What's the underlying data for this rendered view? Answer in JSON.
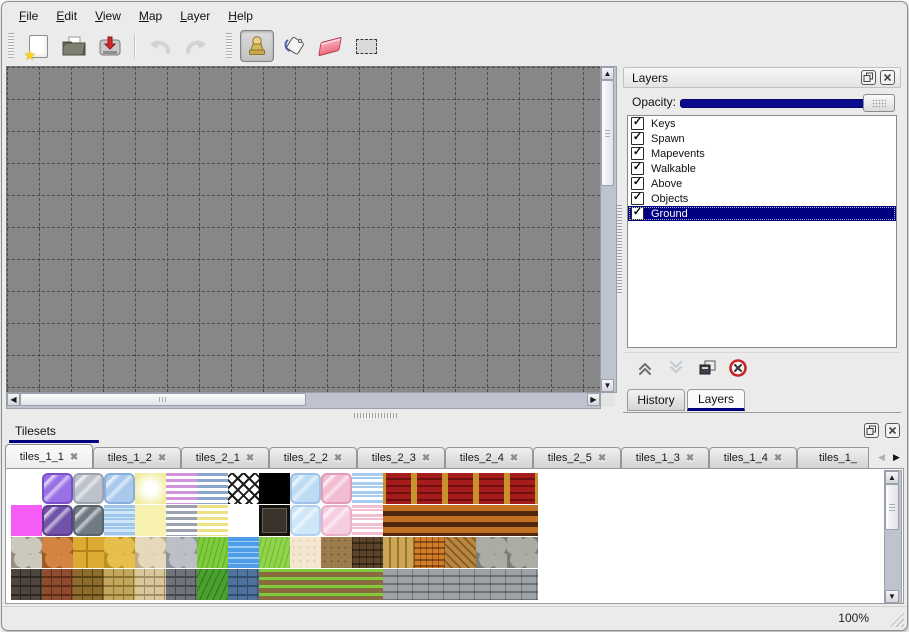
{
  "window": {
    "bg": "#ebebeb",
    "accent": "#000080"
  },
  "menu": {
    "items": [
      {
        "label": "File"
      },
      {
        "label": "Edit"
      },
      {
        "label": "View"
      },
      {
        "label": "Map"
      },
      {
        "label": "Layer"
      },
      {
        "label": "Help"
      }
    ]
  },
  "toolbar": {
    "tools": [
      {
        "name": "new"
      },
      {
        "name": "open"
      },
      {
        "name": "save"
      },
      {
        "name": "undo",
        "disabled": true
      },
      {
        "name": "redo",
        "disabled": true
      },
      {
        "name": "stamp",
        "active": true
      },
      {
        "name": "fill"
      },
      {
        "name": "eraser"
      },
      {
        "name": "select"
      }
    ]
  },
  "layers_panel": {
    "title": "Layers",
    "opacity_label": "Opacity:",
    "layers": [
      {
        "name": "Keys",
        "checked": true,
        "selected": false
      },
      {
        "name": "Spawn",
        "checked": true,
        "selected": false
      },
      {
        "name": "Mapevents",
        "checked": true,
        "selected": false
      },
      {
        "name": "Walkable",
        "checked": true,
        "selected": false
      },
      {
        "name": "Above",
        "checked": true,
        "selected": false
      },
      {
        "name": "Objects",
        "checked": true,
        "selected": false
      },
      {
        "name": "Ground",
        "checked": true,
        "selected": true
      }
    ],
    "dock_tabs": [
      {
        "label": "History",
        "active": false
      },
      {
        "label": "Layers",
        "active": true
      }
    ]
  },
  "tilesets_panel": {
    "title": "Tilesets",
    "tabs": [
      {
        "label": "tiles_1_1",
        "active": true
      },
      {
        "label": "tiles_1_2"
      },
      {
        "label": "tiles_2_1"
      },
      {
        "label": "tiles_2_2"
      },
      {
        "label": "tiles_2_3"
      },
      {
        "label": "tiles_2_4"
      },
      {
        "label": "tiles_2_5"
      },
      {
        "label": "tiles_1_3"
      },
      {
        "label": "tiles_1_4"
      },
      {
        "label": "tiles_1_",
        "truncated": true
      }
    ]
  },
  "status_bar": {
    "zoom_level": "100%"
  },
  "canvas": {
    "grid_size": 32,
    "bg": "#878787",
    "grid_color": "#4c4c4c"
  },
  "tileset_tiles": {
    "tile_size": 31,
    "rows": [
      [
        {
          "t": "empty"
        },
        {
          "t": "glass",
          "a": "#9a70e6",
          "b": "#7a50c8"
        },
        {
          "t": "glass",
          "a": "#bcc2cc",
          "b": "#9aa2ae"
        },
        {
          "t": "glass",
          "a": "#a9c9ec",
          "b": "#88aedd"
        },
        {
          "t": "glow",
          "a": "#f2eb9a"
        },
        {
          "t": "hstripes",
          "a": "#d293dd",
          "b": "#ffffff"
        },
        {
          "t": "hstripes",
          "a": "#8aa6cc",
          "b": "#ffffff"
        },
        {
          "t": "lattice",
          "a": "#ffffff",
          "b": "#1c1c1c"
        },
        {
          "t": "solid",
          "a": "#000000"
        },
        {
          "t": "glass",
          "a": "#bedbf4",
          "b": "#9cc2e6"
        },
        {
          "t": "glass",
          "a": "#f2bcd2",
          "b": "#e29ab8"
        },
        {
          "t": "waves",
          "a": "#a6cdf0",
          "b": "#ffffff"
        },
        {
          "t": "curtain",
          "a": "#a51c1c",
          "b": "#6e1010",
          "c": "#c8922c"
        },
        {
          "t": "curtain",
          "a": "#a51c1c",
          "b": "#6e1010",
          "c": "#c8922c"
        },
        {
          "t": "curtain",
          "a": "#a51c1c",
          "b": "#6e1010",
          "c": "#c8922c"
        },
        {
          "t": "curtain",
          "a": "#a51c1c",
          "b": "#6e1010",
          "c": "#c8922c"
        },
        {
          "t": "curtain",
          "a": "#a51c1c",
          "b": "#6e1010",
          "c": "#c8922c"
        }
      ],
      [
        {
          "t": "solid",
          "a": "#f55cf5"
        },
        {
          "t": "glass",
          "a": "#7152a8",
          "b": "#5a3e8c"
        },
        {
          "t": "glass",
          "a": "#6f7a84",
          "b": "#59636c"
        },
        {
          "t": "waves",
          "a": "#9ec6ea",
          "b": "#cfe6fa"
        },
        {
          "t": "solid",
          "a": "#f8f2b0"
        },
        {
          "t": "hstripes",
          "a": "#9aa2b0",
          "b": "#ffffff"
        },
        {
          "t": "hstripes",
          "a": "#ece284",
          "b": "#ffffff"
        },
        {
          "t": "empty"
        },
        {
          "t": "sign",
          "a": "#3a332b",
          "b": "#15110d"
        },
        {
          "t": "glass",
          "a": "#cfe6f8",
          "b": "#b0d0ee"
        },
        {
          "t": "glass",
          "a": "#f6cde0",
          "b": "#e8b0ca"
        },
        {
          "t": "waves",
          "a": "#f4bed2",
          "b": "#ffffff"
        },
        {
          "t": "hbands",
          "a": "#c07020",
          "b": "#50260c"
        },
        {
          "t": "hbands",
          "a": "#c07020",
          "b": "#50260c"
        },
        {
          "t": "hbands",
          "a": "#c07020",
          "b": "#50260c"
        },
        {
          "t": "hbands",
          "a": "#c07020",
          "b": "#50260c"
        },
        {
          "t": "hbands",
          "a": "#c07020",
          "b": "#50260c"
        }
      ],
      [
        {
          "t": "stone",
          "a": "#ccc8bc",
          "b": "#938e7e"
        },
        {
          "t": "stone",
          "a": "#d28442",
          "b": "#a05a22"
        },
        {
          "t": "tiles4",
          "a": "#dcab34",
          "b": "#b5831c"
        },
        {
          "t": "stone",
          "a": "#e5be4c",
          "b": "#bb9222"
        },
        {
          "t": "stone",
          "a": "#e6d8ba",
          "b": "#bfae86"
        },
        {
          "t": "stone",
          "a": "#bbbfc7",
          "b": "#8d929c"
        },
        {
          "t": "grass",
          "a": "#7ecb3e",
          "b": "#62ab26"
        },
        {
          "t": "water",
          "a": "#4f9ce8",
          "b": "#9ccdf4"
        },
        {
          "t": "grass",
          "a": "#90d44c",
          "b": "#72b82f"
        },
        {
          "t": "speckle",
          "a": "#f4e6d0",
          "b": "#dcc9ac"
        },
        {
          "t": "speckle",
          "a": "#9c7c4c",
          "b": "#6e5632"
        },
        {
          "t": "shingle",
          "a": "#5c442a",
          "b": "#3a2a18"
        },
        {
          "t": "planksv",
          "a": "#cca654",
          "b": "#97742e"
        },
        {
          "t": "weave",
          "a": "#d07c28",
          "b": "#8f4d14"
        },
        {
          "t": "herring",
          "a": "#b8863f",
          "b": "#835a28"
        },
        {
          "t": "stone",
          "a": "#abaca4",
          "b": "#7b7d75"
        },
        {
          "t": "stone",
          "a": "#abaca4",
          "b": "#7b7d75"
        }
      ],
      [
        {
          "t": "brick",
          "a": "#4c463e",
          "b": "#2b2721"
        },
        {
          "t": "brick",
          "a": "#8e4c30",
          "b": "#5e2e18"
        },
        {
          "t": "brick",
          "a": "#8c6c2c",
          "b": "#584212"
        },
        {
          "t": "brick",
          "a": "#c2a65e",
          "b": "#8d7332"
        },
        {
          "t": "brick",
          "a": "#d8c79c",
          "b": "#a38d62"
        },
        {
          "t": "brick",
          "a": "#70747a",
          "b": "#45494f"
        },
        {
          "t": "hedge",
          "a": "#4aa02f",
          "b": "#2f7419"
        },
        {
          "t": "brick",
          "a": "#4f739b",
          "b": "#334f70"
        },
        {
          "t": "rows",
          "a": "#7ecb3e",
          "b": "#8a6a3e"
        },
        {
          "t": "rows",
          "a": "#7ecb3e",
          "b": "#8a6a3e"
        },
        {
          "t": "rows",
          "a": "#7ecb3e",
          "b": "#8a6a3e"
        },
        {
          "t": "rows",
          "a": "#7ecb3e",
          "b": "#8a6a3e"
        },
        {
          "t": "planksh",
          "a": "#9ca2a6",
          "b": "#6d7377"
        },
        {
          "t": "planksh",
          "a": "#9ca2a6",
          "b": "#6d7377"
        },
        {
          "t": "planksh",
          "a": "#9ca2a6",
          "b": "#6d7377"
        },
        {
          "t": "planksh",
          "a": "#9ca2a6",
          "b": "#6d7377"
        },
        {
          "t": "planksh",
          "a": "#9ca2a6",
          "b": "#6d7377"
        }
      ]
    ]
  }
}
